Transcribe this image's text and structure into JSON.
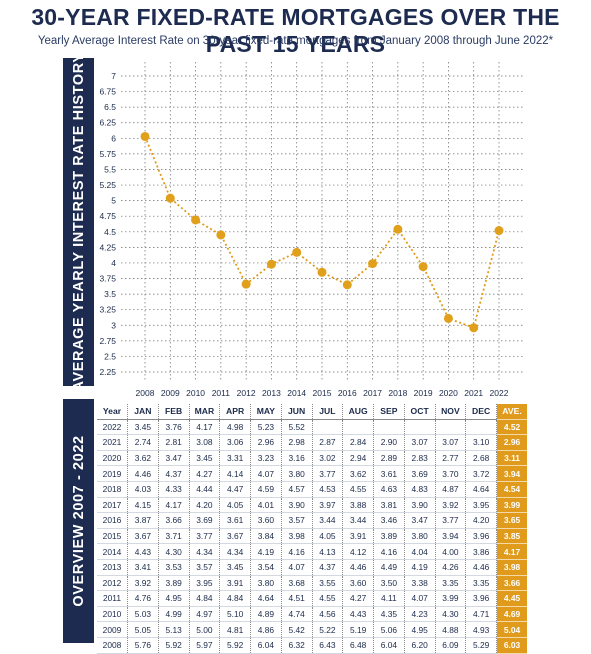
{
  "header": {
    "title": "30-YEAR FIXED-RATE MORTGAGES OVER THE PAST 15 YEARS",
    "subtitle": "Yearly Average Interest Rate on 30-year fixed-rate mortgages from January 2008 through June 2022*"
  },
  "sidebar": {
    "chart_label": "AVERAGE YEARLY INTEREST RATE HISTORY",
    "table_label": "OVERVIEW 2007 - 2022"
  },
  "colors": {
    "navy": "#1c2b4f",
    "accent": "#e09a1c"
  },
  "chart_data": {
    "type": "line",
    "title": "",
    "xlabel": "",
    "ylabel": "AVERAGE YEARLY INTEREST RATE HISTORY",
    "x": [
      "2008",
      "2009",
      "2010",
      "2011",
      "2012",
      "2013",
      "2014",
      "2015",
      "2016",
      "2017",
      "2018",
      "2019",
      "2020",
      "2021",
      "2022"
    ],
    "y_ticks": [
      "2.25",
      "2.5",
      "2.75",
      "3",
      "3.25",
      "3.5",
      "3.75",
      "4",
      "4.25",
      "4.5",
      "4.75",
      "5",
      "5.25",
      "5.5",
      "5.75",
      "6",
      "6.25",
      "6.5",
      "6.75",
      "7"
    ],
    "ylim": [
      2.25,
      7
    ],
    "grid": true,
    "series": [
      {
        "values": [
          6.03,
          5.04,
          4.69,
          4.45,
          3.66,
          3.98,
          4.17,
          3.85,
          3.65,
          3.99,
          4.54,
          3.94,
          3.11,
          2.96,
          4.52
        ]
      }
    ]
  },
  "table": {
    "headers": [
      "Year",
      "JAN",
      "FEB",
      "MAR",
      "APR",
      "MAY",
      "JUN",
      "JUL",
      "AUG",
      "SEP",
      "OCT",
      "NOV",
      "DEC",
      "AVE."
    ],
    "rows": [
      [
        "2022",
        "3.45",
        "3.76",
        "4.17",
        "4.98",
        "5.23",
        "5.52",
        "",
        "",
        "",
        "",
        "",
        "",
        "4.52"
      ],
      [
        "2021",
        "2.74",
        "2.81",
        "3.08",
        "3.06",
        "2.96",
        "2.98",
        "2.87",
        "2.84",
        "2.90",
        "3.07",
        "3.07",
        "3.10",
        "2.96"
      ],
      [
        "2020",
        "3.62",
        "3.47",
        "3.45",
        "3.31",
        "3.23",
        "3.16",
        "3.02",
        "2.94",
        "2.89",
        "2.83",
        "2.77",
        "2.68",
        "3.11"
      ],
      [
        "2019",
        "4.46",
        "4.37",
        "4.27",
        "4.14",
        "4.07",
        "3.80",
        "3.77",
        "3.62",
        "3.61",
        "3.69",
        "3.70",
        "3.72",
        "3.94"
      ],
      [
        "2018",
        "4.03",
        "4.33",
        "4.44",
        "4.47",
        "4.59",
        "4.57",
        "4.53",
        "4.55",
        "4.63",
        "4.83",
        "4.87",
        "4.64",
        "4.54"
      ],
      [
        "2017",
        "4.15",
        "4.17",
        "4.20",
        "4.05",
        "4.01",
        "3.90",
        "3.97",
        "3.88",
        "3.81",
        "3.90",
        "3.92",
        "3.95",
        "3.99"
      ],
      [
        "2016",
        "3.87",
        "3.66",
        "3.69",
        "3.61",
        "3.60",
        "3.57",
        "3.44",
        "3.44",
        "3.46",
        "3.47",
        "3.77",
        "4.20",
        "3.65"
      ],
      [
        "2015",
        "3.67",
        "3.71",
        "3.77",
        "3.67",
        "3.84",
        "3.98",
        "4.05",
        "3.91",
        "3.89",
        "3.80",
        "3.94",
        "3.96",
        "3.85"
      ],
      [
        "2014",
        "4.43",
        "4.30",
        "4.34",
        "4.34",
        "4.19",
        "4.16",
        "4.13",
        "4.12",
        "4.16",
        "4.04",
        "4.00",
        "3.86",
        "4.17"
      ],
      [
        "2013",
        "3.41",
        "3.53",
        "3.57",
        "3.45",
        "3.54",
        "4.07",
        "4.37",
        "4.46",
        "4.49",
        "4.19",
        "4.26",
        "4.46",
        "3.98"
      ],
      [
        "2012",
        "3.92",
        "3.89",
        "3.95",
        "3.91",
        "3.80",
        "3.68",
        "3.55",
        "3.60",
        "3.50",
        "3.38",
        "3.35",
        "3.35",
        "3.66"
      ],
      [
        "2011",
        "4.76",
        "4.95",
        "4.84",
        "4.84",
        "4.64",
        "4.51",
        "4.55",
        "4.27",
        "4.11",
        "4.07",
        "3.99",
        "3.96",
        "4.45"
      ],
      [
        "2010",
        "5.03",
        "4.99",
        "4.97",
        "5.10",
        "4.89",
        "4.74",
        "4.56",
        "4.43",
        "4.35",
        "4.23",
        "4.30",
        "4.71",
        "4.69"
      ],
      [
        "2009",
        "5.05",
        "5.13",
        "5.00",
        "4.81",
        "4.86",
        "5.42",
        "5.22",
        "5.19",
        "5.06",
        "4.95",
        "4.88",
        "4.93",
        "5.04"
      ],
      [
        "2008",
        "5.76",
        "5.92",
        "5.97",
        "5.92",
        "6.04",
        "6.32",
        "6.43",
        "6.48",
        "6.04",
        "6.20",
        "6.09",
        "5.29",
        "6.03"
      ]
    ]
  }
}
